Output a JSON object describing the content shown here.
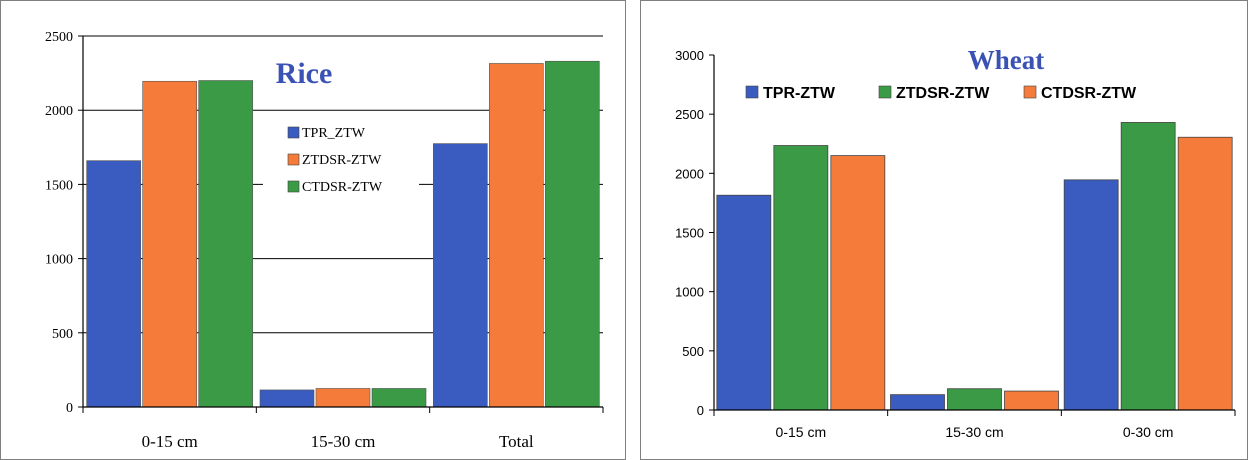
{
  "chart_data": [
    {
      "type": "bar",
      "title": "Rice",
      "categories": [
        "0-15 cm",
        "15-30 cm",
        "Total"
      ],
      "series": [
        {
          "name": "TPR_ZTW",
          "values": [
            1660,
            115,
            1775
          ]
        },
        {
          "name": "ZTDSR-ZTW",
          "values": [
            2195,
            125,
            2315
          ]
        },
        {
          "name": "CTDSR-ZTW",
          "values": [
            2200,
            125,
            2330
          ]
        }
      ],
      "ylim": [
        0,
        2500
      ],
      "yticks": [
        0,
        500,
        1000,
        1500,
        2000,
        2500
      ],
      "grid": true,
      "legend_position": "center"
    },
    {
      "type": "bar",
      "title": "Wheat",
      "categories": [
        "0-15 cm",
        "15-30 cm",
        "0-30 cm"
      ],
      "series": [
        {
          "name": "TPR-ZTW",
          "values": [
            1815,
            130,
            1945
          ]
        },
        {
          "name": "ZTDSR-ZTW",
          "values": [
            2235,
            180,
            2430
          ]
        },
        {
          "name": "CTDSR-ZTW",
          "values": [
            2150,
            160,
            2305
          ]
        }
      ],
      "ylim": [
        0,
        3000
      ],
      "yticks": [
        0,
        500,
        1000,
        1500,
        2000,
        2500,
        3000
      ],
      "grid": false,
      "legend_position": "top"
    }
  ],
  "colors": {
    "rice": [
      "#3a5bbf",
      "#f47b3a",
      "#3a9a45"
    ],
    "wheat": [
      "#3a5bbf",
      "#3a9a45",
      "#f47b3a"
    ],
    "rice_title": "#3a52b3",
    "wheat_title": "#3a52b3"
  }
}
